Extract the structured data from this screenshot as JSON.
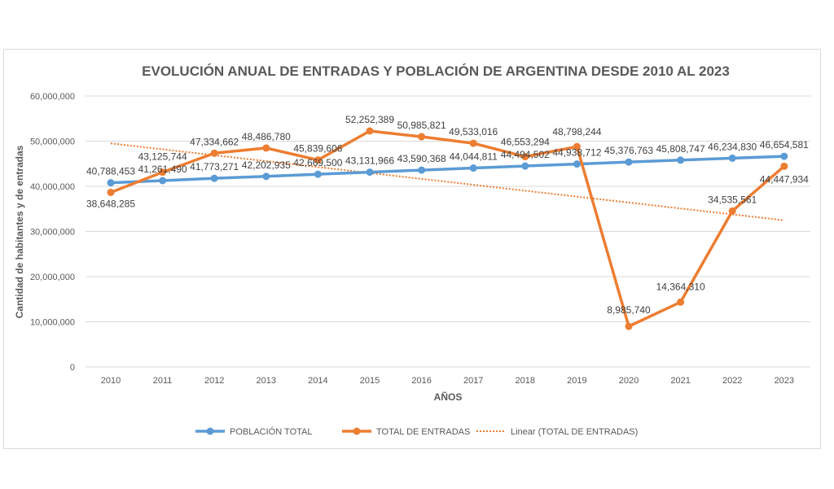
{
  "chart_data": {
    "type": "line",
    "title": "EVOLUCIÓN ANUAL DE ENTRADAS Y POBLACIÓN DE ARGENTINA DESDE 2010 AL 2023",
    "xlabel": "AÑOS",
    "ylabel": "Cantidad de habitantes y de entradas",
    "ylim": [
      0,
      60000000
    ],
    "yticks": [
      0,
      10000000,
      20000000,
      30000000,
      40000000,
      50000000,
      60000000
    ],
    "ytick_labels": [
      "0",
      "10,000,000",
      "20,000,000",
      "30,000,000",
      "40,000,000",
      "50,000,000",
      "60,000,000"
    ],
    "categories": [
      "2010",
      "2011",
      "2012",
      "2013",
      "2014",
      "2015",
      "2016",
      "2017",
      "2018",
      "2019",
      "2020",
      "2021",
      "2022",
      "2023"
    ],
    "grid": true,
    "legend_position": "bottom",
    "series": [
      {
        "name": "POBLACIÓN TOTAL",
        "color": "#5b9bd5",
        "values": [
          40788453,
          41261490,
          41773271,
          42202935,
          42669500,
          43131966,
          43590368,
          44044811,
          44494502,
          44938712,
          45376763,
          45808747,
          46234830,
          46654581
        ],
        "labels": [
          "40,788,453",
          "41,261,490",
          "41,773,271",
          "42,202,935",
          "42,669,500",
          "43,131,966",
          "43,590,368",
          "44,044,811",
          "44,494,502",
          "44,938,712",
          "45,376,763",
          "45,808,747",
          "46,234,830",
          "46,654,581"
        ]
      },
      {
        "name": "TOTAL DE ENTRADAS",
        "color": "#ed7d31",
        "values": [
          38648285,
          43125744,
          47334662,
          48486780,
          45839606,
          52252389,
          50985821,
          49533016,
          46553294,
          48798244,
          8985740,
          14364310,
          34535561,
          44447934
        ],
        "labels": [
          "38,648,285",
          "43,125,744",
          "47,334,662",
          "48,486,780",
          "45,839,606",
          "52,252,389",
          "50,985,821",
          "49,533,016",
          "46,553,294",
          "48,798,244",
          "8,985,740",
          "14,364,310",
          "34,535,561",
          "44,447,934"
        ]
      }
    ],
    "trendline": {
      "name": "Linear (TOTAL DE ENTRADAS)",
      "of": "TOTAL DE ENTRADAS",
      "color": "#ed7d31"
    }
  }
}
